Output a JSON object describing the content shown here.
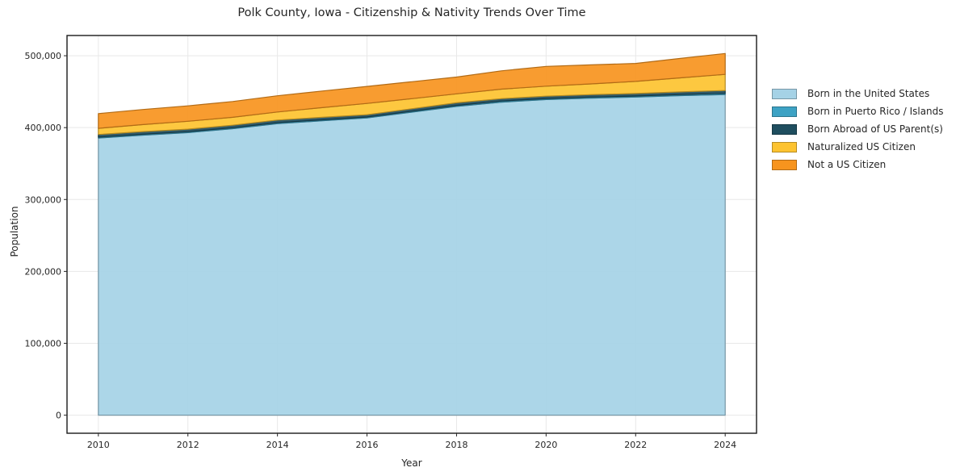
{
  "chart_data": {
    "type": "area",
    "stacked": true,
    "title": "Polk County, Iowa - Citizenship & Nativity Trends Over Time",
    "xlabel": "Year",
    "ylabel": "Population",
    "x": [
      2010,
      2011,
      2012,
      2013,
      2014,
      2015,
      2016,
      2017,
      2018,
      2019,
      2020,
      2021,
      2022,
      2023,
      2024
    ],
    "series": [
      {
        "key": "born-in-us",
        "name": "Born in the United States",
        "color": "#A5D2E6",
        "values": [
          385500,
          389500,
          393000,
          398500,
          405500,
          409500,
          413500,
          421500,
          429500,
          435500,
          439000,
          441000,
          442500,
          444500,
          446000
        ]
      },
      {
        "key": "born-puerto-rico-islands",
        "name": "Born in Puerto Rico / Islands",
        "color": "#3DA2C4",
        "values": [
          1300,
          1350,
          1400,
          1400,
          1450,
          1400,
          1300,
          1400,
          1500,
          1500,
          1500,
          1550,
          1500,
          1650,
          1800
        ]
      },
      {
        "key": "born-abroad-us-parents",
        "name": "Born Abroad of US Parent(s)",
        "color": "#1F4E5F",
        "values": [
          3600,
          3600,
          3500,
          3500,
          3600,
          3400,
          3100,
          3400,
          3500,
          3300,
          3200,
          3300,
          3500,
          3600,
          3800
        ]
      },
      {
        "key": "naturalized-citizen",
        "name": "Naturalized US Citizen",
        "color": "#FDC330",
        "values": [
          8600,
          9800,
          11000,
          11000,
          11200,
          13500,
          15800,
          14000,
          12500,
          13200,
          14000,
          15000,
          16800,
          19500,
          22500
        ]
      },
      {
        "key": "not-us-citizen",
        "name": "Not a US Citizen",
        "color": "#F7941E",
        "values": [
          20500,
          21000,
          21400,
          22000,
          22600,
          23100,
          23600,
          23500,
          23300,
          25500,
          27500,
          26500,
          25000,
          27000,
          29000
        ]
      }
    ],
    "xticks": [
      2010,
      2012,
      2014,
      2016,
      2018,
      2020,
      2022,
      2024
    ],
    "xtick_labels": [
      "2010",
      "2012",
      "2014",
      "2016",
      "2018",
      "2020",
      "2022",
      "2024"
    ],
    "yticks": [
      0,
      100000,
      200000,
      300000,
      400000,
      500000
    ],
    "ytick_labels": [
      "0",
      "100,000",
      "200,000",
      "300,000",
      "400,000",
      "500,000"
    ],
    "xlim": [
      2009.3,
      2024.7
    ],
    "ylim": [
      -25150,
      528150
    ],
    "grid": true,
    "legend_position": "right",
    "colors": {
      "grid": "#E8E8E8",
      "frame": "#1A1A1A",
      "text": "#262626",
      "background": "#FFFFFF"
    }
  }
}
